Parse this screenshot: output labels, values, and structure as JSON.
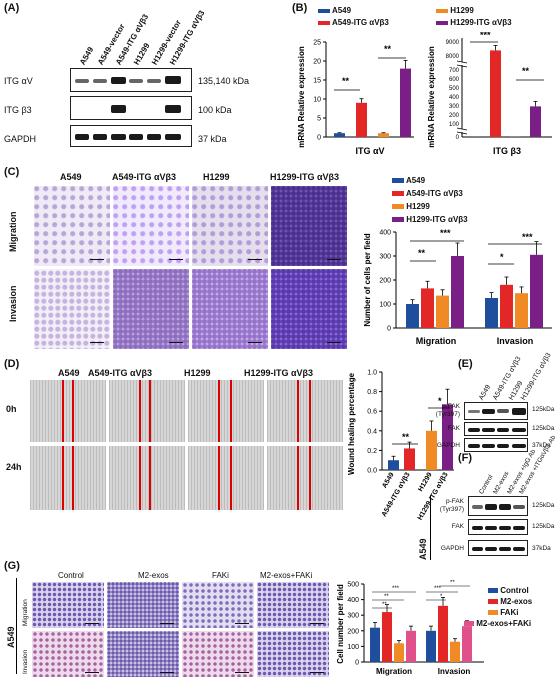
{
  "panels": {
    "A": {
      "label": "(A)",
      "lanes": [
        "A549",
        "A549-vector",
        "A549-ITG αVβ3",
        "H1299",
        "H1299-vector",
        "H1299-ITG αVβ3"
      ],
      "rows": [
        {
          "name": "ITG αV",
          "kda": "135,140 kDa"
        },
        {
          "name": "ITG β3",
          "kda": "100 kDa"
        },
        {
          "name": "GAPDH",
          "kda": "37 kDa"
        }
      ]
    },
    "B": {
      "label": "(B)",
      "legend": [
        "A549",
        "A549-ITG αVβ3",
        "H1299",
        "H1299-ITG αVβ3"
      ],
      "ylabel": "mRNA Relative expression",
      "left_xlabel": "ITG αV",
      "right_xlabel": "ITG β3",
      "left_ticks": [
        "0",
        "5",
        "10",
        "15",
        "20",
        "25"
      ],
      "right_ticks_top": [
        "8000",
        "9000"
      ],
      "right_ticks_mid": [
        "700",
        "600",
        "500",
        "400",
        "300",
        "200",
        "100"
      ],
      "right_ticks_bottom": [
        "0"
      ],
      "sig": [
        "**",
        "**",
        "***",
        "**"
      ]
    },
    "C": {
      "label": "(C)",
      "cols": [
        "A549",
        "A549-ITG αVβ3",
        "H1299",
        "H1299-ITG αVβ3"
      ],
      "rows": [
        "Migration",
        "Invasion"
      ],
      "legend": [
        "A549",
        "A549-ITG αVβ3",
        "H1299",
        "H1299-ITG αVβ3"
      ],
      "ylabel": "Number of cells per field",
      "yticks": [
        "0",
        "100",
        "200",
        "300",
        "400"
      ],
      "groups": [
        "Migration",
        "Invasion"
      ],
      "sig": [
        "**",
        "***",
        "*",
        "***"
      ]
    },
    "D": {
      "label": "(D)",
      "cols": [
        "A549",
        "A549-ITG αVβ3",
        "H1299",
        "H1299-ITG αVβ3"
      ],
      "rows": [
        "0h",
        "24h"
      ],
      "ylabel": "Wound healing percentage",
      "yticks": [
        "0.0",
        "0.2",
        "0.4",
        "0.6",
        "0.8",
        "1.0"
      ],
      "xlabels": [
        "A549",
        "A549-ITG αVβ3",
        "H1299",
        "H1299-ITG αVβ3"
      ],
      "sig": [
        "**",
        "*"
      ]
    },
    "E": {
      "label": "(E)",
      "lanes": [
        "A549",
        "A549-ITG αVβ3",
        "H1299",
        "H1299-ITG αVβ3"
      ],
      "rows": [
        {
          "name": "p-FAK (Tyr397)",
          "kda": "125kDa"
        },
        {
          "name": "FAK",
          "kda": "125kDa"
        },
        {
          "name": "GAPDH",
          "kda": "37kDa"
        }
      ]
    },
    "F": {
      "label": "(F)",
      "side": "A549",
      "lanes": [
        "Control",
        "M2-exos",
        "M2-exos +IgG Ab",
        "M2-exos +ITGαVβ3 Ab"
      ],
      "rows": [
        {
          "name": "p-FAK (Tyr397)",
          "kda": "125kDa"
        },
        {
          "name": "FAK",
          "kda": "125kDa"
        },
        {
          "name": "GAPDH",
          "kda": "37kDa"
        }
      ]
    },
    "G": {
      "label": "(G)",
      "side": "A549",
      "cols": [
        "Control",
        "M2-exos",
        "FAKi",
        "M2-exos+FAKi"
      ],
      "rows": [
        "Migration",
        "Invasion"
      ],
      "legend": [
        "Control",
        "M2-exos",
        "FAKi",
        "M2-exos+FAKi"
      ],
      "ylabel": "Cell number per field",
      "yticks": [
        "0",
        "100",
        "200",
        "300",
        "400",
        "500"
      ],
      "groups": [
        "Migration",
        "Invasion"
      ],
      "sig": [
        "**",
        "**",
        "***",
        "*",
        "***",
        "**"
      ]
    }
  },
  "colors": {
    "blue": "#1f4e9c",
    "red": "#e32626",
    "orange": "#f08a24",
    "purple": "#7a1f86",
    "pink": "#e0508a"
  },
  "chart_data": [
    {
      "type": "bar",
      "categories": [
        "ITG αV"
      ],
      "series": [
        {
          "name": "A549",
          "values": [
            1
          ]
        },
        {
          "name": "A549-ITG αVβ3",
          "values": [
            9
          ]
        },
        {
          "name": "H1299",
          "values": [
            1
          ]
        },
        {
          "name": "H1299-ITG αVβ3",
          "values": [
            18
          ]
        }
      ],
      "ylabel": "mRNA Relative expression",
      "ylim": [
        0,
        25
      ]
    },
    {
      "type": "bar",
      "categories": [
        "ITG β3"
      ],
      "series": [
        {
          "name": "A549",
          "values": [
            1
          ]
        },
        {
          "name": "A549-ITG αVβ3",
          "values": [
            8900
          ]
        },
        {
          "name": "H1299",
          "values": [
            1
          ]
        },
        {
          "name": "H1299-ITG αVβ3",
          "values": [
            330
          ]
        }
      ],
      "ylabel": "mRNA Relative expression",
      "ylim": [
        0,
        9000
      ]
    },
    {
      "type": "bar",
      "categories": [
        "Migration",
        "Invasion"
      ],
      "series": [
        {
          "name": "A549",
          "values": [
            100,
            125
          ]
        },
        {
          "name": "A549-ITG αVβ3",
          "values": [
            165,
            180
          ]
        },
        {
          "name": "H1299",
          "values": [
            135,
            145
          ]
        },
        {
          "name": "H1299-ITG αVβ3",
          "values": [
            300,
            305
          ]
        }
      ],
      "ylabel": "Number of cells per field",
      "ylim": [
        0,
        400
      ]
    },
    {
      "type": "bar",
      "categories": [
        "A549",
        "A549-ITG αVβ3",
        "H1299",
        "H1299-ITG αVβ3"
      ],
      "values": [
        0.1,
        0.22,
        0.4,
        0.67
      ],
      "ylabel": "Wound healing percentage",
      "ylim": [
        0,
        1.0
      ]
    },
    {
      "type": "bar",
      "categories": [
        "Migration",
        "Invasion"
      ],
      "series": [
        {
          "name": "Control",
          "values": [
            220,
            200
          ]
        },
        {
          "name": "M2-exos",
          "values": [
            320,
            360
          ]
        },
        {
          "name": "FAKi",
          "values": [
            120,
            130
          ]
        },
        {
          "name": "M2-exos+FAKi",
          "values": [
            200,
            230
          ]
        }
      ],
      "ylabel": "Cell number per field",
      "ylim": [
        0,
        500
      ]
    }
  ]
}
